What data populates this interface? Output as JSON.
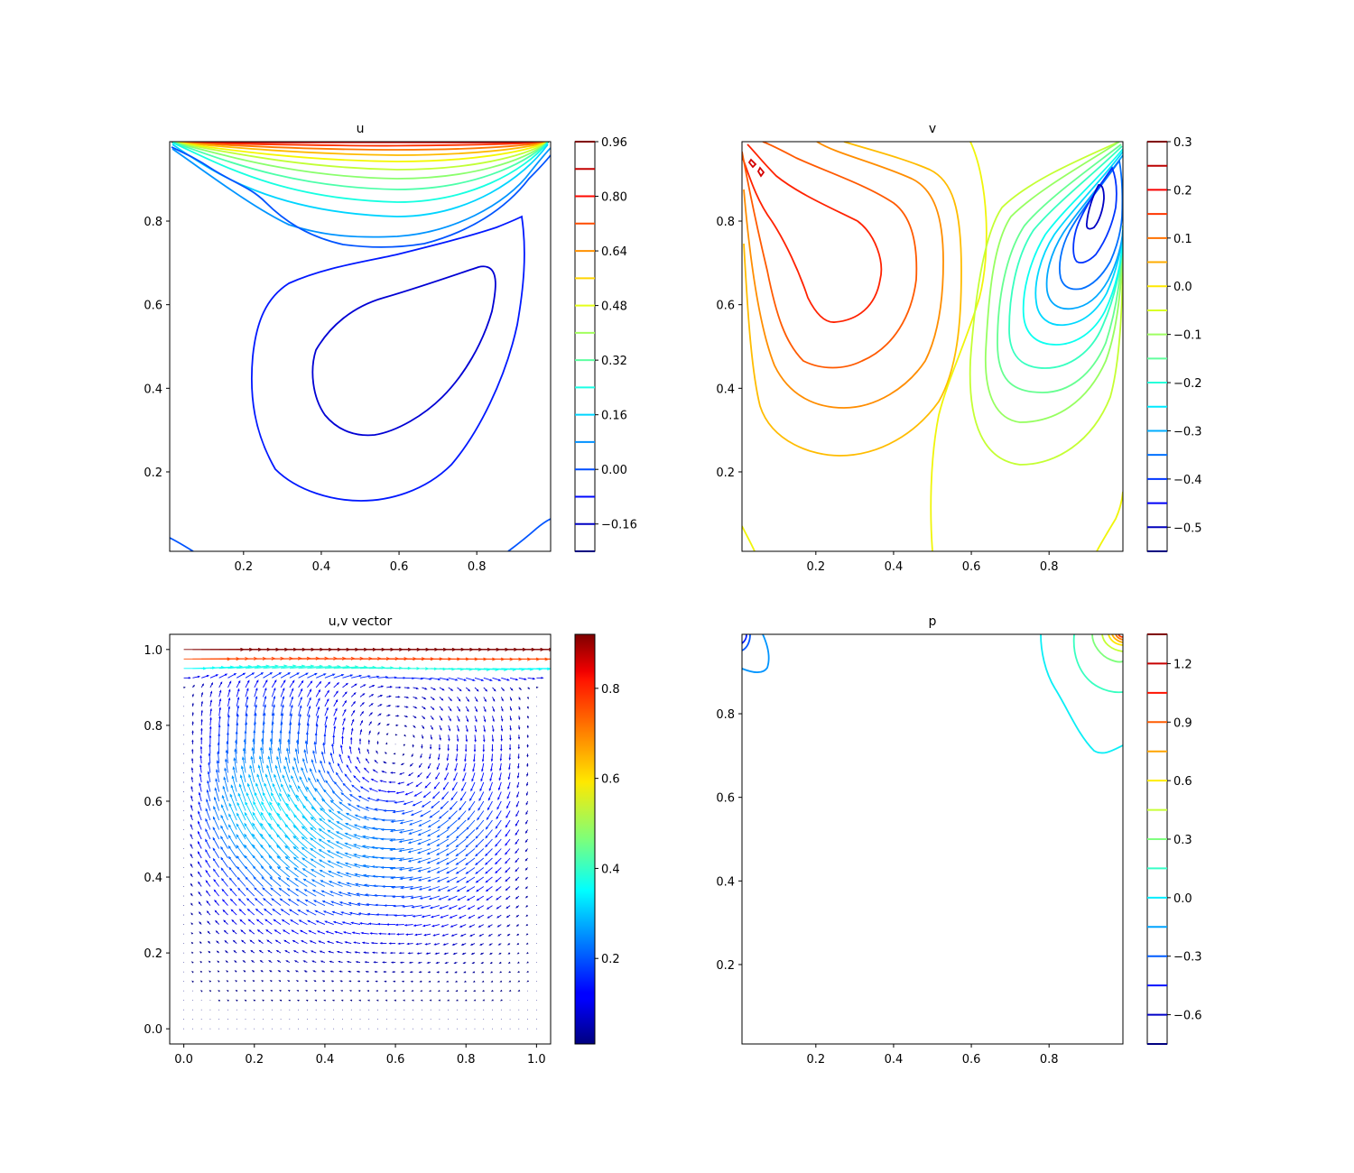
{
  "chart_data": [
    {
      "id": "u",
      "type": "contour",
      "title": "u",
      "xlabel": "",
      "ylabel": "",
      "xlim": [
        0.01,
        0.99
      ],
      "ylim": [
        0.01,
        0.99
      ],
      "x_ticks": [
        "0.2",
        "0.4",
        "0.6",
        "0.8"
      ],
      "y_ticks": [
        "0.2",
        "0.4",
        "0.6",
        "0.8"
      ],
      "colorbar_range": [
        -0.24,
        0.96
      ],
      "colorbar_levels": [
        0.96,
        0.88,
        0.8,
        0.72,
        0.64,
        0.56,
        0.48,
        0.4,
        0.32,
        0.24,
        0.16,
        0.08,
        0.0,
        -0.08,
        -0.16,
        -0.24
      ],
      "colorbar_ticks": [
        0.96,
        0.8,
        0.64,
        0.48,
        0.32,
        0.16,
        0.0,
        -0.16
      ],
      "colorbar_tick_labels": [
        "0.96",
        "0.80",
        "0.64",
        "0.48",
        "0.32",
        "0.16",
        "0.00",
        "−0.16"
      ]
    },
    {
      "id": "v",
      "type": "contour",
      "title": "v",
      "xlabel": "",
      "ylabel": "",
      "xlim": [
        0.01,
        0.99
      ],
      "ylim": [
        0.01,
        0.99
      ],
      "x_ticks": [
        "0.2",
        "0.4",
        "0.6",
        "0.8"
      ],
      "y_ticks": [
        "0.2",
        "0.4",
        "0.6",
        "0.8"
      ],
      "colorbar_range": [
        -0.55,
        0.3
      ],
      "colorbar_levels": [
        0.3,
        0.25,
        0.2,
        0.15,
        0.1,
        0.05,
        0.0,
        -0.05,
        -0.1,
        -0.15,
        -0.2,
        -0.25,
        -0.3,
        -0.35,
        -0.4,
        -0.45,
        -0.5,
        -0.55
      ],
      "colorbar_ticks": [
        0.3,
        0.2,
        0.1,
        0.0,
        -0.1,
        -0.2,
        -0.3,
        -0.4,
        -0.5
      ],
      "colorbar_tick_labels": [
        "0.3",
        "0.2",
        "0.1",
        "0.0",
        "−0.1",
        "−0.2",
        "−0.3",
        "−0.4",
        "−0.5"
      ]
    },
    {
      "id": "uv",
      "type": "quiver",
      "title": "u,v vector",
      "xlabel": "",
      "ylabel": "",
      "xlim": [
        -0.04,
        1.04
      ],
      "ylim": [
        -0.04,
        1.04
      ],
      "x_ticks": [
        "0.0",
        "0.2",
        "0.4",
        "0.6",
        "0.8",
        "1.0"
      ],
      "y_ticks": [
        "0.0",
        "0.2",
        "0.4",
        "0.6",
        "0.8",
        "1.0"
      ],
      "vortex_center": [
        0.6,
        0.75
      ],
      "colorbar_range": [
        0.01,
        0.92
      ],
      "colorbar_ticks": [
        0.2,
        0.4,
        0.6,
        0.8
      ],
      "colorbar_tick_labels": [
        "0.2",
        "0.4",
        "0.6",
        "0.8"
      ]
    },
    {
      "id": "p",
      "type": "contour",
      "title": "p",
      "xlabel": "",
      "ylabel": "",
      "xlim": [
        0.01,
        0.99
      ],
      "ylim": [
        0.01,
        0.99
      ],
      "x_ticks": [
        "0.2",
        "0.4",
        "0.6",
        "0.8"
      ],
      "y_ticks": [
        "0.2",
        "0.4",
        "0.6",
        "0.8"
      ],
      "colorbar_range": [
        -0.75,
        1.35
      ],
      "colorbar_levels": [
        1.35,
        1.2,
        1.05,
        0.9,
        0.75,
        0.6,
        0.45,
        0.3,
        0.15,
        0.0,
        -0.15,
        -0.3,
        -0.45,
        -0.6,
        -0.75
      ],
      "colorbar_ticks": [
        1.2,
        0.9,
        0.6,
        0.3,
        0.0,
        -0.3,
        -0.6
      ],
      "colorbar_tick_labels": [
        "1.2",
        "0.9",
        "0.6",
        "0.3",
        "0.0",
        "−0.3",
        "−0.6"
      ]
    }
  ]
}
